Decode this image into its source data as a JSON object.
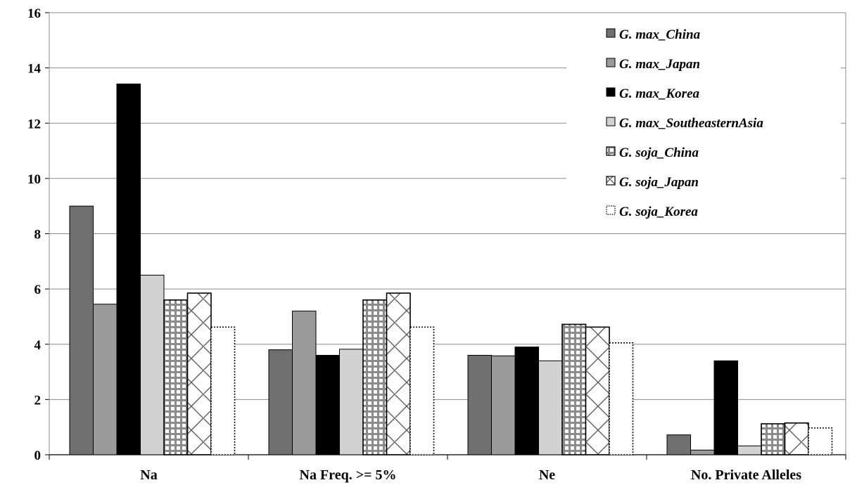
{
  "chart_data": {
    "type": "bar",
    "title": "",
    "xlabel": "",
    "ylabel": "",
    "ylim": [
      0,
      16
    ],
    "yticks": [
      0,
      2,
      4,
      6,
      8,
      10,
      12,
      14,
      16
    ],
    "grid": true,
    "legend_position": "top-right",
    "categories": [
      "Na",
      "Na Freq. >= 5%",
      "Ne",
      "No. Private Alleles"
    ],
    "series": [
      {
        "name": "G. max_China",
        "fill": "#707070",
        "pattern": "solid",
        "values": [
          9.0,
          3.8,
          3.6,
          0.72
        ]
      },
      {
        "name": "G. max_Japan",
        "fill": "#9a9a9a",
        "pattern": "solid",
        "values": [
          5.45,
          5.2,
          3.58,
          0.17
        ]
      },
      {
        "name": "G. max_Korea",
        "fill": "#000000",
        "pattern": "solid",
        "values": [
          13.42,
          3.6,
          3.9,
          3.4
        ]
      },
      {
        "name": "G. max_SoutheasternAsia",
        "fill": "#d2d2d2",
        "pattern": "solid",
        "values": [
          6.5,
          3.82,
          3.4,
          0.32
        ]
      },
      {
        "name": "G. soja_China",
        "fill": "#ffffff",
        "pattern": "grid",
        "values": [
          5.6,
          5.6,
          4.72,
          1.12
        ]
      },
      {
        "name": "G. soja_Japan",
        "fill": "#ffffff",
        "pattern": "diamond",
        "values": [
          5.85,
          5.85,
          4.62,
          1.15
        ]
      },
      {
        "name": "G. soja_Korea",
        "fill": "#ffffff",
        "pattern": "dotted",
        "values": [
          4.62,
          4.62,
          4.05,
          0.97
        ]
      }
    ]
  }
}
